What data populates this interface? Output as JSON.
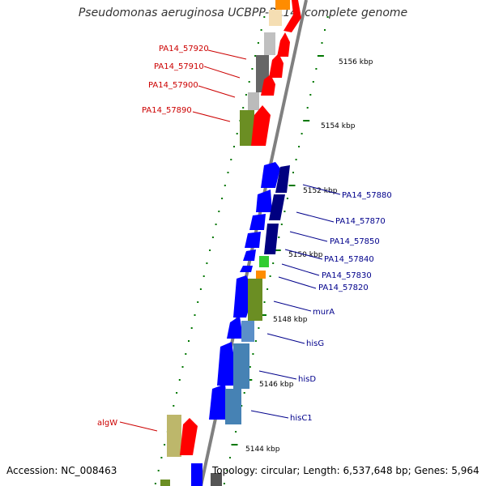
{
  "title": "Pseudomonas aeruginosa UCBPP-PA14, complete genome",
  "footer": {
    "accession": "Accession: NC_008463",
    "topology": "Topology: circular; Length: 6,537,648 bp; Genes: 5,964"
  },
  "colors": {
    "backbone": "#808080",
    "left_labels": "#cc0000",
    "right_labels": "#00008b",
    "tick_marks": "#007700",
    "red_gene": "#ff0000",
    "blue_gene": "#0000ff",
    "navy_gene": "#000080",
    "olive_gene": "#6b8e23",
    "steel_gene": "#4682b4",
    "green_gene": "#33cc33",
    "orange_gene": "#ff8c00",
    "khaki_gene": "#bdb76b",
    "grey_gene": "#aaaaaa",
    "dark_grey_gene": "#666666"
  },
  "scale_labels": [
    "5156 kbp",
    "5154 kbp",
    "5152 kbp",
    "5150 kbp",
    "5148 kbp",
    "5146 kbp",
    "5144 kbp"
  ],
  "left_gene_labels": [
    "PA14_57920",
    "PA14_57910",
    "PA14_57900",
    "PA14_57890",
    "algW"
  ],
  "right_gene_labels": [
    "PA14_57880",
    "PA14_57870",
    "PA14_57850",
    "PA14_57840",
    "PA14_57830",
    "PA14_57820",
    "murA",
    "hisG",
    "hisD",
    "hisC1"
  ]
}
